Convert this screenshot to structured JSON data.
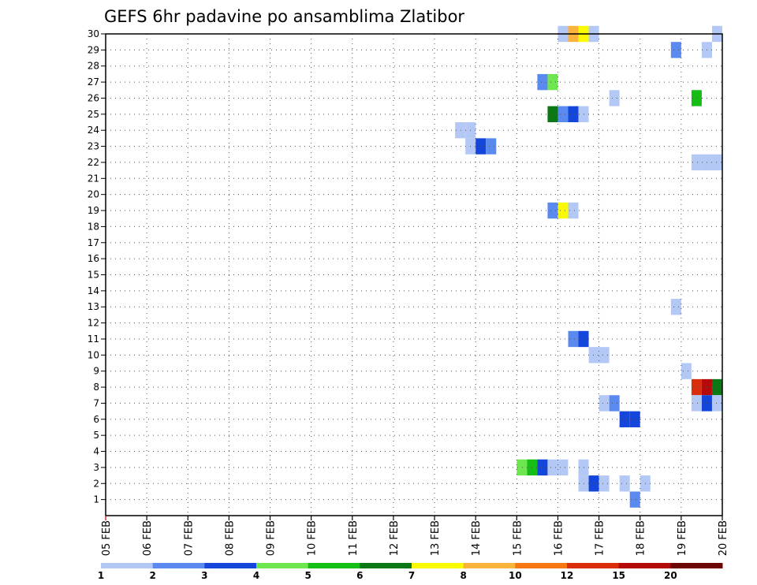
{
  "chart_data": {
    "type": "heatmap",
    "title": "GEFS 6hr padavine po ansamblima Zlatibor",
    "y_tick_labels": [
      "1",
      "2",
      "3",
      "4",
      "5",
      "6",
      "7",
      "8",
      "9",
      "10",
      "11",
      "12",
      "13",
      "14",
      "15",
      "16",
      "17",
      "18",
      "19",
      "20",
      "21",
      "22",
      "23",
      "24",
      "25",
      "26",
      "27",
      "28",
      "29",
      "30"
    ],
    "x_tick_labels": [
      "05 FEB",
      "06 FEB",
      "07 FEB",
      "08 FEB",
      "09 FEB",
      "10 FEB",
      "11 FEB",
      "12 FEB",
      "13 FEB",
      "14 FEB",
      "15 FEB",
      "16 FEB",
      "17 FEB",
      "18 FEB",
      "19 FEB",
      "20 FEB"
    ],
    "x_range_days": [
      5,
      20
    ],
    "y_range_members": [
      0,
      30
    ],
    "step_hours": 6,
    "grid": true,
    "colorbar": {
      "boundary_labels": [
        "1",
        "2",
        "3",
        "4",
        "5",
        "6",
        "7",
        "8",
        "10",
        "12",
        "15",
        "20"
      ],
      "colors": [
        "#b4c8f6",
        "#5a8af0",
        "#1446dc",
        "#6ee650",
        "#14be14",
        "#0a7814",
        "#fafa00",
        "#fab43c",
        "#f57814",
        "#dc2d0a",
        "#b40a0a",
        "#6e0505"
      ]
    },
    "cells": [
      {
        "member": 30,
        "day": 16.0,
        "value": 1.5
      },
      {
        "member": 30,
        "day": 16.25,
        "value": 9
      },
      {
        "member": 30,
        "day": 16.5,
        "value": 7.5
      },
      {
        "member": 30,
        "day": 16.75,
        "value": 1.5
      },
      {
        "member": 30,
        "day": 19.75,
        "value": 1.5
      },
      {
        "member": 29,
        "day": 18.75,
        "value": 2.5
      },
      {
        "member": 29,
        "day": 19.5,
        "value": 1.5
      },
      {
        "member": 27,
        "day": 15.5,
        "value": 2.5
      },
      {
        "member": 27,
        "day": 15.75,
        "value": 4.5
      },
      {
        "member": 26,
        "day": 17.25,
        "value": 1.5
      },
      {
        "member": 26,
        "day": 19.25,
        "value": 5.5
      },
      {
        "member": 25,
        "day": 15.75,
        "value": 6.5
      },
      {
        "member": 25,
        "day": 16.0,
        "value": 2.5
      },
      {
        "member": 25,
        "day": 16.25,
        "value": 3.5
      },
      {
        "member": 25,
        "day": 16.5,
        "value": 1.5
      },
      {
        "member": 24,
        "day": 13.5,
        "value": 1.5
      },
      {
        "member": 24,
        "day": 13.75,
        "value": 1.5
      },
      {
        "member": 23,
        "day": 13.75,
        "value": 1.5
      },
      {
        "member": 23,
        "day": 14.0,
        "value": 3.5
      },
      {
        "member": 23,
        "day": 14.25,
        "value": 2.5
      },
      {
        "member": 22,
        "day": 19.25,
        "value": 1.5
      },
      {
        "member": 22,
        "day": 19.5,
        "value": 1.5
      },
      {
        "member": 22,
        "day": 19.75,
        "value": 1.5
      },
      {
        "member": 19,
        "day": 15.75,
        "value": 2.5
      },
      {
        "member": 19,
        "day": 16.0,
        "value": 7.5
      },
      {
        "member": 19,
        "day": 16.25,
        "value": 1.5
      },
      {
        "member": 13,
        "day": 18.75,
        "value": 1.5
      },
      {
        "member": 11,
        "day": 16.25,
        "value": 2.5
      },
      {
        "member": 11,
        "day": 16.5,
        "value": 3.5
      },
      {
        "member": 10,
        "day": 16.75,
        "value": 1.5
      },
      {
        "member": 10,
        "day": 17.0,
        "value": 1.5
      },
      {
        "member": 9,
        "day": 19.0,
        "value": 1.5
      },
      {
        "member": 8,
        "day": 19.25,
        "value": 13
      },
      {
        "member": 8,
        "day": 19.5,
        "value": 17
      },
      {
        "member": 8,
        "day": 19.75,
        "value": 6.5
      },
      {
        "member": 7,
        "day": 17.0,
        "value": 1.5
      },
      {
        "member": 7,
        "day": 17.25,
        "value": 2.5
      },
      {
        "member": 7,
        "day": 19.25,
        "value": 1.5
      },
      {
        "member": 7,
        "day": 19.5,
        "value": 3.5
      },
      {
        "member": 7,
        "day": 19.75,
        "value": 1.5
      },
      {
        "member": 6,
        "day": 17.5,
        "value": 3.5
      },
      {
        "member": 6,
        "day": 17.75,
        "value": 3.5
      },
      {
        "member": 3,
        "day": 15.0,
        "value": 4.5
      },
      {
        "member": 3,
        "day": 15.25,
        "value": 5.5
      },
      {
        "member": 3,
        "day": 15.5,
        "value": 3.5
      },
      {
        "member": 3,
        "day": 15.75,
        "value": 1.5
      },
      {
        "member": 3,
        "day": 16.0,
        "value": 1.5
      },
      {
        "member": 3,
        "day": 16.5,
        "value": 1.5
      },
      {
        "member": 2,
        "day": 16.5,
        "value": 1.5
      },
      {
        "member": 2,
        "day": 16.75,
        "value": 3.5
      },
      {
        "member": 2,
        "day": 17.0,
        "value": 1.5
      },
      {
        "member": 2,
        "day": 17.5,
        "value": 1.5
      },
      {
        "member": 2,
        "day": 18.0,
        "value": 1.5
      },
      {
        "member": 1,
        "day": 17.75,
        "value": 2.5
      }
    ]
  }
}
